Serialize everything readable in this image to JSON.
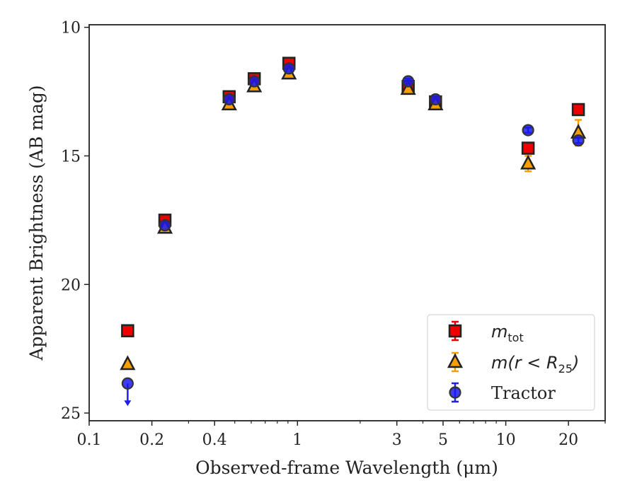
{
  "chart_data": {
    "type": "scatter",
    "xlabel": "Observed-frame Wavelength (μm)",
    "ylabel": "Apparent Brightness (AB mag)",
    "x_scale": "log",
    "xlim": [
      0.1,
      30
    ],
    "ylim": [
      25.3,
      9.9
    ],
    "y_inverted": true,
    "x_ticks": [
      {
        "value": 0.1,
        "label": "0.1"
      },
      {
        "value": 0.2,
        "label": "0.2"
      },
      {
        "value": 0.4,
        "label": "0.4"
      },
      {
        "value": 1,
        "label": "1"
      },
      {
        "value": 3,
        "label": "3"
      },
      {
        "value": 5,
        "label": "5"
      },
      {
        "value": 10,
        "label": "10"
      },
      {
        "value": 20,
        "label": "20"
      }
    ],
    "y_ticks": [
      {
        "value": 10,
        "label": "10"
      },
      {
        "value": 15,
        "label": "15"
      },
      {
        "value": 20,
        "label": "20"
      },
      {
        "value": 25,
        "label": "25"
      }
    ],
    "grid": false,
    "legend_position": "bottom-right",
    "series": [
      {
        "name_base": "m",
        "name_sub": "tot",
        "marker": "square",
        "color": "#ee0000",
        "edge": "#222222",
        "errcolor": "#ee0000",
        "points": [
          {
            "x": 0.153,
            "y": 21.8,
            "err": 0.1
          },
          {
            "x": 0.231,
            "y": 17.5,
            "err": 0.1
          },
          {
            "x": 0.47,
            "y": 12.7,
            "err": 0.1
          },
          {
            "x": 0.62,
            "y": 12.0,
            "err": 0.1
          },
          {
            "x": 0.91,
            "y": 11.4,
            "err": 0.1
          },
          {
            "x": 3.4,
            "y": 12.3,
            "err": 0.1
          },
          {
            "x": 4.6,
            "y": 12.9,
            "err": 0.1
          },
          {
            "x": 12.8,
            "y": 14.7,
            "err": 0.2
          },
          {
            "x": 22.3,
            "y": 13.2,
            "err": 0.1
          }
        ]
      },
      {
        "name_base": "m(r < R",
        "name_sub": "25",
        "name_tail": ")",
        "marker": "triangle",
        "color": "#f5a000",
        "edge": "#222222",
        "errcolor": "#f5a000",
        "points": [
          {
            "x": 0.153,
            "y": 23.1,
            "err": 0.1
          },
          {
            "x": 0.231,
            "y": 17.8,
            "err": 0.1
          },
          {
            "x": 0.47,
            "y": 13.0,
            "err": 0.1
          },
          {
            "x": 0.62,
            "y": 12.3,
            "err": 0.1
          },
          {
            "x": 0.91,
            "y": 11.8,
            "err": 0.1
          },
          {
            "x": 3.4,
            "y": 12.4,
            "err": 0.1
          },
          {
            "x": 4.6,
            "y": 13.0,
            "err": 0.1
          },
          {
            "x": 12.8,
            "y": 15.3,
            "err": 0.3
          },
          {
            "x": 22.3,
            "y": 14.1,
            "err": 0.5
          }
        ]
      },
      {
        "name": "Tractor",
        "marker": "circle",
        "color": "#1a1aee",
        "edge": "#333333",
        "errcolor": "#2020ee",
        "points": [
          {
            "x": 0.153,
            "y": 23.85,
            "upper_limit": true
          },
          {
            "x": 0.231,
            "y": 17.7,
            "err": 0.1
          },
          {
            "x": 0.47,
            "y": 12.8,
            "err": 0.1
          },
          {
            "x": 0.62,
            "y": 12.1,
            "err": 0.1
          },
          {
            "x": 0.91,
            "y": 11.6,
            "err": 0.1
          },
          {
            "x": 3.4,
            "y": 12.1,
            "err": 0.1
          },
          {
            "x": 4.6,
            "y": 12.8,
            "err": 0.1
          },
          {
            "x": 12.8,
            "y": 14.0,
            "err": 0.1
          },
          {
            "x": 22.3,
            "y": 14.4,
            "err": 0.1
          }
        ]
      }
    ]
  }
}
